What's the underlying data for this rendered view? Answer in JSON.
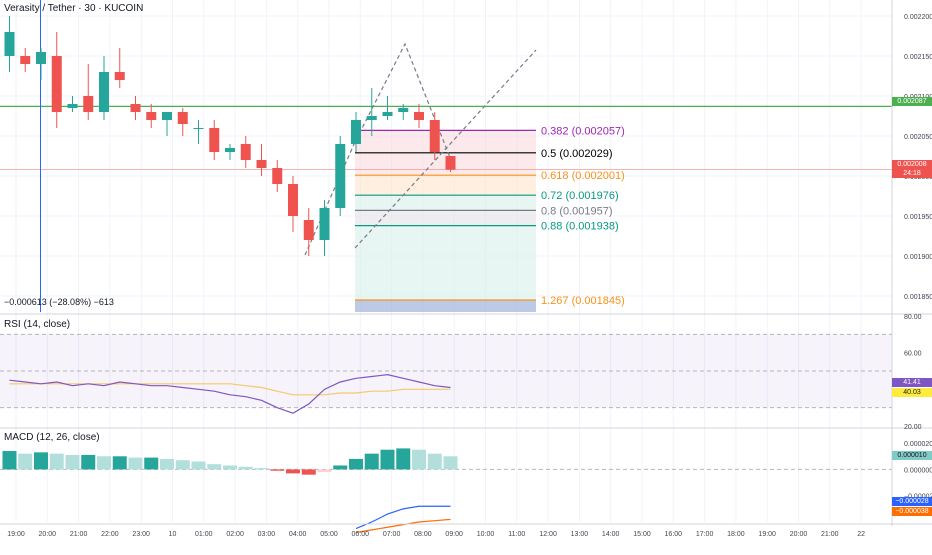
{
  "header": {
    "title": "Verasity / Tether · 30 · KUCOIN"
  },
  "measure": {
    "text": "−0.000613 (−28.08%) −613"
  },
  "price_axis": {
    "ticks": [
      "0.002200",
      "0.002150",
      "0.002100",
      "0.002050",
      "0.002000",
      "0.001950",
      "0.001900",
      "0.001850"
    ],
    "hline_label": "0.002087",
    "last_price": "0.002008",
    "countdown": "24:18"
  },
  "fib_levels": [
    {
      "label": "0.382 (0.002057)",
      "color": "#9c27b0"
    },
    {
      "label": "0.5 (0.002029)",
      "color": "#000000"
    },
    {
      "label": "0.618 (0.002001)",
      "color": "#f7931a"
    },
    {
      "label": "0.72 (0.001976)",
      "color": "#089981"
    },
    {
      "label": "0.8 (0.001957)",
      "color": "#787b86"
    },
    {
      "label": "0.88 (0.001938)",
      "color": "#089981"
    },
    {
      "label": "1.267 (0.001845)",
      "color": "#f7931a"
    }
  ],
  "rsi": {
    "label": "RSI (14, close)",
    "ticks": [
      "80.00",
      "60.00",
      "20.00"
    ],
    "value_badge": "41.41",
    "ma_badge": "40.03"
  },
  "macd": {
    "label": "MACD (12, 26, close)",
    "ticks": [
      "0.000020",
      "0.000000",
      "−0.000020"
    ],
    "hist_badge": "0.000010",
    "macd_badge": "−0.000028",
    "signal_badge": "−0.000038"
  },
  "time_axis": {
    "labels": [
      "19:00",
      "20:00",
      "21:00",
      "22:00",
      "23:00",
      "10",
      "01:00",
      "02:00",
      "03:00",
      "04:00",
      "05:00",
      "06:00",
      "07:00",
      "08:00",
      "09:00",
      "10:00",
      "11:00",
      "12:00",
      "13:00",
      "14:00",
      "15:00",
      "16:00",
      "17:00",
      "18:00",
      "19:00",
      "20:00",
      "21:00",
      "22"
    ]
  },
  "colors": {
    "up": "#26a69a",
    "down": "#ef5350",
    "ma": "#4caf50",
    "rsi": "#7e57c2",
    "macd": "#2962ff",
    "signal": "#ff6d00"
  },
  "chart_data": [
    {
      "type": "candlestick",
      "title": "Verasity / Tether · 30 · KUCOIN",
      "ylim": [
        0.00183,
        0.00222
      ],
      "candles": [
        {
          "o": 0.00215,
          "h": 0.0022,
          "l": 0.00213,
          "c": 0.00218
        },
        {
          "o": 0.00215,
          "h": 0.00216,
          "l": 0.00213,
          "c": 0.00214
        },
        {
          "o": 0.00214,
          "h": 0.00216,
          "l": 0.00212,
          "c": 0.002155
        },
        {
          "o": 0.00215,
          "h": 0.00218,
          "l": 0.00206,
          "c": 0.00208
        },
        {
          "o": 0.002085,
          "h": 0.0021,
          "l": 0.00208,
          "c": 0.00209
        },
        {
          "o": 0.0021,
          "h": 0.00214,
          "l": 0.00207,
          "c": 0.00208
        },
        {
          "o": 0.00208,
          "h": 0.00215,
          "l": 0.00207,
          "c": 0.00213
        },
        {
          "o": 0.00213,
          "h": 0.00216,
          "l": 0.00211,
          "c": 0.00212
        },
        {
          "o": 0.00209,
          "h": 0.0021,
          "l": 0.00207,
          "c": 0.00208
        },
        {
          "o": 0.00208,
          "h": 0.00209,
          "l": 0.00206,
          "c": 0.00207
        },
        {
          "o": 0.00207,
          "h": 0.00208,
          "l": 0.00205,
          "c": 0.00208
        },
        {
          "o": 0.00208,
          "h": 0.002085,
          "l": 0.00205,
          "c": 0.002065
        },
        {
          "o": 0.00206,
          "h": 0.00207,
          "l": 0.00204,
          "c": 0.00206
        },
        {
          "o": 0.00206,
          "h": 0.00207,
          "l": 0.00202,
          "c": 0.00203
        },
        {
          "o": 0.00203,
          "h": 0.00204,
          "l": 0.00202,
          "c": 0.002035
        },
        {
          "o": 0.00204,
          "h": 0.00205,
          "l": 0.00201,
          "c": 0.00202
        },
        {
          "o": 0.00202,
          "h": 0.00204,
          "l": 0.002,
          "c": 0.00201
        },
        {
          "o": 0.00201,
          "h": 0.00202,
          "l": 0.00198,
          "c": 0.00199
        },
        {
          "o": 0.00199,
          "h": 0.002,
          "l": 0.00193,
          "c": 0.00195
        },
        {
          "o": 0.001945,
          "h": 0.00196,
          "l": 0.0019,
          "c": 0.00192
        },
        {
          "o": 0.00192,
          "h": 0.00197,
          "l": 0.0019,
          "c": 0.00196
        },
        {
          "o": 0.00196,
          "h": 0.00205,
          "l": 0.00195,
          "c": 0.00204
        },
        {
          "o": 0.00204,
          "h": 0.00208,
          "l": 0.00203,
          "c": 0.00207
        },
        {
          "o": 0.00207,
          "h": 0.00211,
          "l": 0.00205,
          "c": 0.002075
        },
        {
          "o": 0.002075,
          "h": 0.0021,
          "l": 0.00207,
          "c": 0.00208
        },
        {
          "o": 0.00208,
          "h": 0.00209,
          "l": 0.00207,
          "c": 0.002085
        },
        {
          "o": 0.00208,
          "h": 0.00209,
          "l": 0.00206,
          "c": 0.00207
        },
        {
          "o": 0.00207,
          "h": 0.00208,
          "l": 0.00202,
          "c": 0.00203
        },
        {
          "o": 0.002025,
          "h": 0.002025,
          "l": 0.002005,
          "c": 0.002008
        }
      ]
    },
    {
      "type": "line",
      "title": "RSI (14, close)",
      "ylim": [
        20,
        80
      ],
      "series": [
        {
          "values": [
            45,
            44,
            43,
            44,
            42,
            43,
            42,
            44,
            43,
            42,
            42,
            41,
            40,
            39,
            37,
            36,
            34,
            30,
            27,
            32,
            40,
            44,
            46,
            47,
            48,
            46,
            44,
            42,
            41
          ]
        },
        {
          "values": [
            43,
            43,
            43,
            43,
            43,
            43,
            43,
            43,
            43,
            43,
            43,
            43,
            43,
            43,
            43,
            42,
            41,
            39,
            37,
            37,
            37,
            38,
            38,
            39,
            39,
            40,
            40,
            40,
            40
          ]
        }
      ]
    },
    {
      "type": "bar",
      "title": "MACD (12, 26, close)",
      "ylim": [
        -4e-05,
        3e-05
      ],
      "values": [
        1.4e-05,
        1.2e-05,
        1.3e-05,
        1.2e-05,
        1.1e-05,
        1.1e-05,
        1e-05,
        1e-05,
        9e-06,
        9e-06,
        8e-06,
        7e-06,
        6e-06,
        4e-06,
        3e-06,
        2e-06,
        1e-06,
        -1e-06,
        -3e-06,
        -4e-06,
        -2e-06,
        3e-06,
        8e-06,
        1.2e-05,
        1.5e-05,
        1.6e-05,
        1.5e-05,
        1.2e-05,
        1e-05
      ],
      "macd_line": [
        -4.5e-05,
        -4e-05,
        -3.4e-05,
        -3e-05,
        -2.8e-05,
        -2.8e-05,
        -2.8e-05
      ],
      "signal_line": [
        -4.8e-05,
        -4.6e-05,
        -4.4e-05,
        -4.2e-05,
        -4e-05,
        -3.9e-05,
        -3.8e-05
      ]
    }
  ]
}
